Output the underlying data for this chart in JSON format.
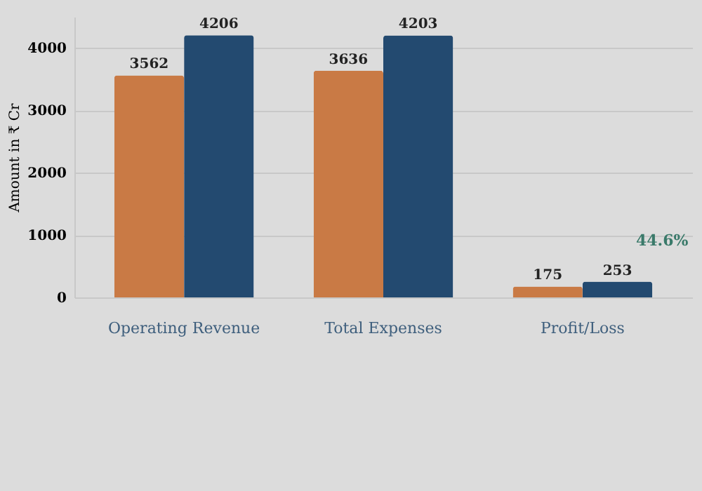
{
  "chart_data": {
    "type": "bar",
    "ylabel": "Amount in ₹ Cr",
    "categories": [
      "Operating Revenue",
      "Total Expenses",
      "Profit/Loss"
    ],
    "series": [
      {
        "color": "#c97a45",
        "values": [
          3562,
          3636,
          175
        ]
      },
      {
        "color": "#234a70",
        "values": [
          4206,
          4203,
          253
        ]
      }
    ],
    "ylim": [
      0,
      4500
    ],
    "yticks": [
      0,
      1000,
      2000,
      3000,
      4000
    ],
    "grid": "y",
    "data_labels": true,
    "legend": false,
    "annotations": [
      "44.6%"
    ]
  }
}
